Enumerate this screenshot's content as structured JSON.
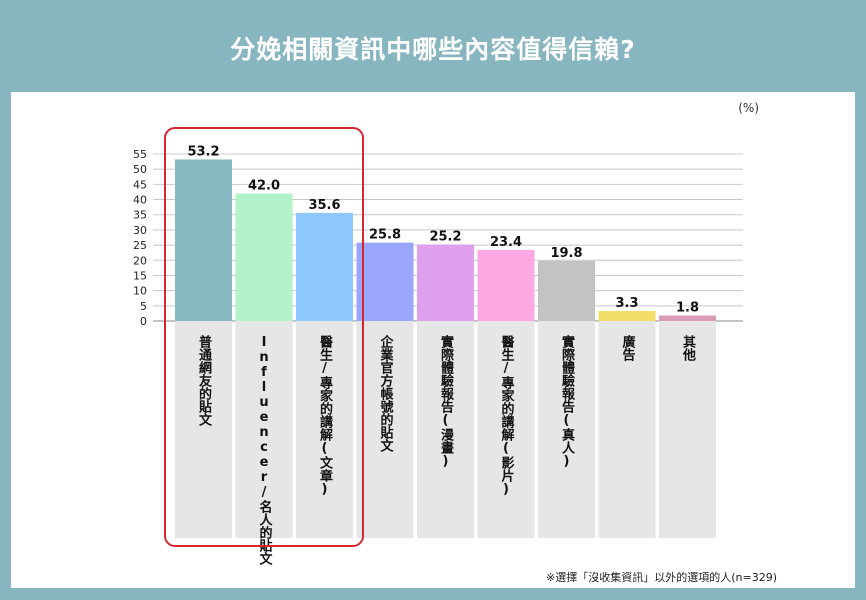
{
  "page": {
    "title": "分娩相關資訊中哪些內容值得信賴?"
  },
  "chart_data": {
    "type": "bar",
    "unit": "(%)",
    "footnote": "※選擇「沒收集資訊」以外的選項的人(n=329)",
    "ylim": [
      0,
      55
    ],
    "yticks": [
      0,
      5,
      10,
      15,
      20,
      25,
      30,
      35,
      40,
      45,
      50,
      55
    ],
    "grid": true,
    "highlight": {
      "style": "rounded-box",
      "color": "#d7262e",
      "covers_first_n": 3
    },
    "categories": [
      "普通網友的貼文",
      "Influencer/名人的貼文",
      "醫生/專家的講解(文章)",
      "企業官方帳號的貼文",
      "實際體驗報告(漫畫)",
      "醫生/專家的講解(影片)",
      "實際體驗報告(真人)",
      "廣告",
      "其他"
    ],
    "values": [
      53.2,
      42.0,
      35.6,
      25.8,
      25.2,
      23.4,
      19.8,
      3.3,
      1.8
    ],
    "value_labels": [
      "53.2",
      "42.0",
      "35.6",
      "25.8",
      "25.2",
      "23.4",
      "19.8",
      "3.3",
      "1.8"
    ],
    "colors": [
      "#86b8c1",
      "#b3f2c9",
      "#8cc8fc",
      "#9aa6fb",
      "#dea0ee",
      "#fba8e3",
      "#c3c3c3",
      "#f2dd6a",
      "#d99bb5"
    ]
  }
}
